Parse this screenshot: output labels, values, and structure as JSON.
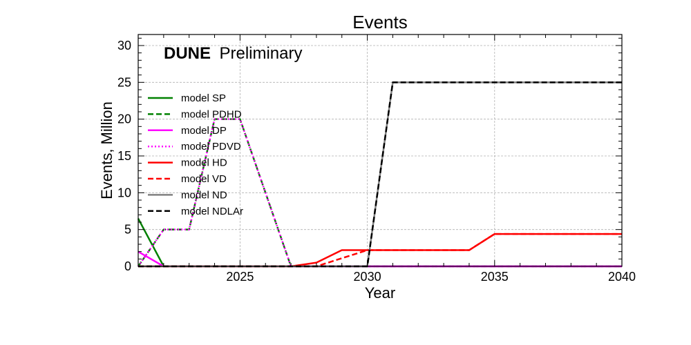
{
  "chart_data": {
    "type": "line",
    "title": "Events",
    "xlabel": "Year",
    "ylabel": "Events, Million",
    "annotation": {
      "bold": "DUNE",
      "text": "Preliminary"
    },
    "xlim": [
      2021,
      2040
    ],
    "ylim": [
      0,
      31.5
    ],
    "xticks": [
      2025,
      2030,
      2035,
      2040
    ],
    "yticks": [
      0,
      5,
      10,
      15,
      20,
      25,
      30
    ],
    "grid": true,
    "legend_position": "center-left",
    "series": [
      {
        "name": "model SP",
        "color": "#008000",
        "dash": "solid",
        "x": [
          2021,
          2022,
          2023,
          2024,
          2025,
          2026,
          2027,
          2028,
          2029,
          2030,
          2031,
          2032,
          2033,
          2034,
          2035,
          2036,
          2037,
          2038,
          2039,
          2040
        ],
        "y": [
          6.5,
          0,
          0,
          0,
          0,
          0,
          0,
          0,
          0,
          0,
          0,
          0,
          0,
          0,
          0,
          0,
          0,
          0,
          0,
          0
        ]
      },
      {
        "name": "model PDHD",
        "color": "#008000",
        "dash": "dashed",
        "x": [
          2021,
          2022,
          2023,
          2024,
          2025,
          2026,
          2027,
          2028,
          2029,
          2030,
          2031,
          2032,
          2033,
          2034,
          2035,
          2036,
          2037,
          2038,
          2039,
          2040
        ],
        "y": [
          0,
          5,
          5,
          20,
          20,
          10,
          0,
          0,
          0,
          0,
          0,
          0,
          0,
          0,
          0,
          0,
          0,
          0,
          0,
          0
        ]
      },
      {
        "name": "model DP",
        "color": "#ff00ff",
        "dash": "solid",
        "x": [
          2021,
          2022,
          2023,
          2024,
          2025,
          2026,
          2027,
          2028,
          2029,
          2030,
          2031,
          2032,
          2033,
          2034,
          2035,
          2036,
          2037,
          2038,
          2039,
          2040
        ],
        "y": [
          2,
          0,
          0,
          0,
          0,
          0,
          0,
          0,
          0,
          0,
          0,
          0,
          0,
          0,
          0,
          0,
          0,
          0,
          0,
          0
        ]
      },
      {
        "name": "model PDVD",
        "color": "#ff00ff",
        "dash": "dotted",
        "x": [
          2021,
          2022,
          2023,
          2024,
          2025,
          2026,
          2027,
          2028,
          2029,
          2030,
          2031,
          2032,
          2033,
          2034,
          2035,
          2036,
          2037,
          2038,
          2039,
          2040
        ],
        "y": [
          0,
          5,
          5,
          20,
          20,
          10,
          0,
          0,
          0,
          0,
          0,
          0,
          0,
          0,
          0,
          0,
          0,
          0,
          0,
          0
        ]
      },
      {
        "name": "model HD",
        "color": "#ff0000",
        "dash": "solid",
        "x": [
          2021,
          2022,
          2023,
          2024,
          2025,
          2026,
          2027,
          2028,
          2029,
          2030,
          2031,
          2032,
          2033,
          2034,
          2035,
          2036,
          2037,
          2038,
          2039,
          2040
        ],
        "y": [
          0,
          0,
          0,
          0,
          0,
          0,
          0,
          0.5,
          2.2,
          2.2,
          2.2,
          2.2,
          2.2,
          2.2,
          4.4,
          4.4,
          4.4,
          4.4,
          4.4,
          4.4
        ]
      },
      {
        "name": "model VD",
        "color": "#ff0000",
        "dash": "dashed",
        "x": [
          2021,
          2022,
          2023,
          2024,
          2025,
          2026,
          2027,
          2028,
          2029,
          2030,
          2031,
          2032,
          2033,
          2034,
          2035,
          2036,
          2037,
          2038,
          2039,
          2040
        ],
        "y": [
          0,
          0,
          0,
          0,
          0,
          0,
          0,
          0,
          1.1,
          2.2,
          2.2,
          2.2,
          2.2,
          2.2,
          4.4,
          4.4,
          4.4,
          4.4,
          4.4,
          4.4
        ]
      },
      {
        "name": "model ND",
        "color": "#808080",
        "dash": "solid",
        "x": [
          2021,
          2022,
          2023,
          2024,
          2025,
          2026,
          2027,
          2028,
          2029,
          2030,
          2031,
          2032,
          2033,
          2034,
          2035,
          2036,
          2037,
          2038,
          2039,
          2040
        ],
        "y": [
          0,
          0,
          0,
          0,
          0,
          0,
          0,
          0,
          0,
          0,
          25,
          25,
          25,
          25,
          25,
          25,
          25,
          25,
          25,
          25
        ]
      },
      {
        "name": "model NDLAr",
        "color": "#000000",
        "dash": "dashed",
        "x": [
          2021,
          2022,
          2023,
          2024,
          2025,
          2026,
          2027,
          2028,
          2029,
          2030,
          2031,
          2032,
          2033,
          2034,
          2035,
          2036,
          2037,
          2038,
          2039,
          2040
        ],
        "y": [
          0,
          0,
          0,
          0,
          0,
          0,
          0,
          0,
          0,
          0,
          25,
          25,
          25,
          25,
          25,
          25,
          25,
          25,
          25,
          25
        ]
      }
    ]
  }
}
